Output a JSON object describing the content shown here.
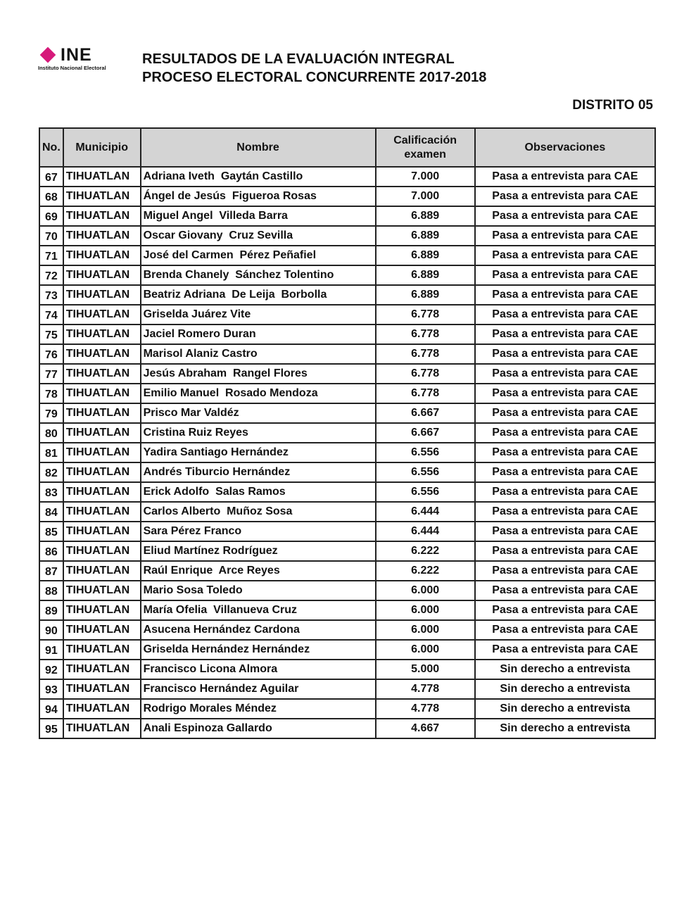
{
  "logo": {
    "mark": "INE",
    "subtitle": "Instituto Nacional Electoral",
    "brand_color": "#d6197a"
  },
  "header": {
    "title_line1": "RESULTADOS DE LA EVALUACIÓN INTEGRAL",
    "title_line2": "PROCESO ELECTORAL CONCURRENTE 2017-2018",
    "district": "DISTRITO 05"
  },
  "table": {
    "columns": [
      "No.",
      "Municipio",
      "Nombre",
      "Calificación examen",
      "Observaciones"
    ],
    "rows": [
      [
        "67",
        "TIHUATLAN",
        "Adriana Iveth  Gaytán Castillo",
        "7.000",
        "Pasa a entrevista para CAE"
      ],
      [
        "68",
        "TIHUATLAN",
        "Ángel de Jesús  Figueroa Rosas",
        "7.000",
        "Pasa a entrevista para CAE"
      ],
      [
        "69",
        "TIHUATLAN",
        "Miguel Angel  Villeda Barra",
        "6.889",
        "Pasa a entrevista para CAE"
      ],
      [
        "70",
        "TIHUATLAN",
        "Oscar Giovany  Cruz Sevilla",
        "6.889",
        "Pasa a entrevista para CAE"
      ],
      [
        "71",
        "TIHUATLAN",
        "José del Carmen  Pérez Peñafiel",
        "6.889",
        "Pasa a entrevista para CAE"
      ],
      [
        "72",
        "TIHUATLAN",
        "Brenda Chanely  Sánchez Tolentino",
        "6.889",
        "Pasa a entrevista para CAE"
      ],
      [
        "73",
        "TIHUATLAN",
        "Beatriz Adriana  De Leija  Borbolla",
        "6.889",
        "Pasa a entrevista para CAE"
      ],
      [
        "74",
        "TIHUATLAN",
        "Griselda Juárez Vite",
        "6.778",
        "Pasa a entrevista para CAE"
      ],
      [
        "75",
        "TIHUATLAN",
        "Jaciel Romero Duran",
        "6.778",
        "Pasa a entrevista para CAE"
      ],
      [
        "76",
        "TIHUATLAN",
        "Marisol Alaniz Castro",
        "6.778",
        "Pasa a entrevista para CAE"
      ],
      [
        "77",
        "TIHUATLAN",
        "Jesús Abraham  Rangel Flores",
        "6.778",
        "Pasa a entrevista para CAE"
      ],
      [
        "78",
        "TIHUATLAN",
        "Emilio Manuel  Rosado Mendoza",
        "6.778",
        "Pasa a entrevista para CAE"
      ],
      [
        "79",
        "TIHUATLAN",
        "Prisco Mar Valdéz",
        "6.667",
        "Pasa a entrevista para CAE"
      ],
      [
        "80",
        "TIHUATLAN",
        "Cristina Ruiz Reyes",
        "6.667",
        "Pasa a entrevista para CAE"
      ],
      [
        "81",
        "TIHUATLAN",
        "Yadira Santiago Hernández",
        "6.556",
        "Pasa a entrevista para CAE"
      ],
      [
        "82",
        "TIHUATLAN",
        "Andrés Tiburcio Hernández",
        "6.556",
        "Pasa a entrevista para CAE"
      ],
      [
        "83",
        "TIHUATLAN",
        "Erick Adolfo  Salas Ramos",
        "6.556",
        "Pasa a entrevista para CAE"
      ],
      [
        "84",
        "TIHUATLAN",
        "Carlos Alberto  Muñoz Sosa",
        "6.444",
        "Pasa a entrevista para CAE"
      ],
      [
        "85",
        "TIHUATLAN",
        "Sara Pérez Franco",
        "6.444",
        "Pasa a entrevista para CAE"
      ],
      [
        "86",
        "TIHUATLAN",
        "Eliud Martínez Rodríguez",
        "6.222",
        "Pasa a entrevista para CAE"
      ],
      [
        "87",
        "TIHUATLAN",
        "Raúl Enrique  Arce Reyes",
        "6.222",
        "Pasa a entrevista para CAE"
      ],
      [
        "88",
        "TIHUATLAN",
        "Mario Sosa Toledo",
        "6.000",
        "Pasa a entrevista para CAE"
      ],
      [
        "89",
        "TIHUATLAN",
        "María Ofelia  Villanueva Cruz",
        "6.000",
        "Pasa a entrevista para CAE"
      ],
      [
        "90",
        "TIHUATLAN",
        "Asucena Hernández Cardona",
        "6.000",
        "Pasa a entrevista para CAE"
      ],
      [
        "91",
        "TIHUATLAN",
        "Griselda Hernández Hernández",
        "6.000",
        "Pasa a entrevista para CAE"
      ],
      [
        "92",
        "TIHUATLAN",
        "Francisco Licona Almora",
        "5.000",
        "Sin derecho a entrevista"
      ],
      [
        "93",
        "TIHUATLAN",
        "Francisco Hernández Aguilar",
        "4.778",
        "Sin derecho a entrevista"
      ],
      [
        "94",
        "TIHUATLAN",
        "Rodrigo Morales Méndez",
        "4.778",
        "Sin derecho a entrevista"
      ],
      [
        "95",
        "TIHUATLAN",
        "Anali Espinoza Gallardo",
        "4.667",
        "Sin derecho a entrevista"
      ]
    ]
  }
}
